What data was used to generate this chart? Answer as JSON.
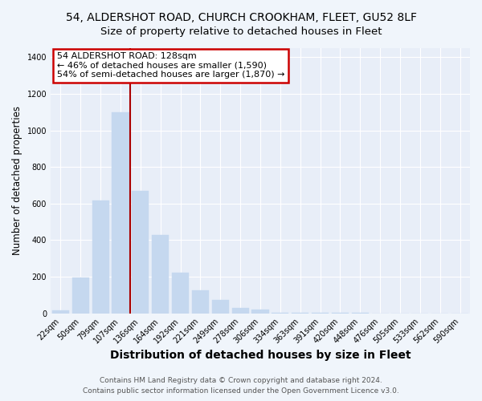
{
  "title": "54, ALDERSHOT ROAD, CHURCH CROOKHAM, FLEET, GU52 8LF",
  "subtitle": "Size of property relative to detached houses in Fleet",
  "xlabel": "Distribution of detached houses by size in Fleet",
  "ylabel": "Number of detached properties",
  "categories": [
    "22sqm",
    "50sqm",
    "79sqm",
    "107sqm",
    "136sqm",
    "164sqm",
    "192sqm",
    "221sqm",
    "249sqm",
    "278sqm",
    "306sqm",
    "334sqm",
    "363sqm",
    "391sqm",
    "420sqm",
    "448sqm",
    "476sqm",
    "505sqm",
    "533sqm",
    "562sqm",
    "590sqm"
  ],
  "values": [
    15,
    195,
    615,
    1100,
    670,
    430,
    220,
    125,
    75,
    30,
    20,
    5,
    3,
    2,
    1,
    1,
    0,
    0,
    0,
    0,
    0
  ],
  "bar_color": "#c5d8ef",
  "bar_edgecolor": "#c5d8ef",
  "vline_color": "#aa0000",
  "annotation_title": "54 ALDERSHOT ROAD: 128sqm",
  "annotation_line1": "← 46% of detached houses are smaller (1,590)",
  "annotation_line2": "54% of semi-detached houses are larger (1,870) →",
  "annotation_box_facecolor": "#ffffff",
  "annotation_box_edgecolor": "#cc0000",
  "footer1": "Contains HM Land Registry data © Crown copyright and database right 2024.",
  "footer2": "Contains public sector information licensed under the Open Government Licence v3.0.",
  "ylim": [
    0,
    1450
  ],
  "yticks": [
    0,
    200,
    400,
    600,
    800,
    1000,
    1200,
    1400
  ],
  "bg_color": "#f0f5fb",
  "plot_bg_color": "#e8eef8",
  "title_fontsize": 10,
  "subtitle_fontsize": 9.5,
  "xlabel_fontsize": 10,
  "ylabel_fontsize": 8.5,
  "tick_fontsize": 7,
  "footer_fontsize": 6.5,
  "ann_fontsize": 8
}
